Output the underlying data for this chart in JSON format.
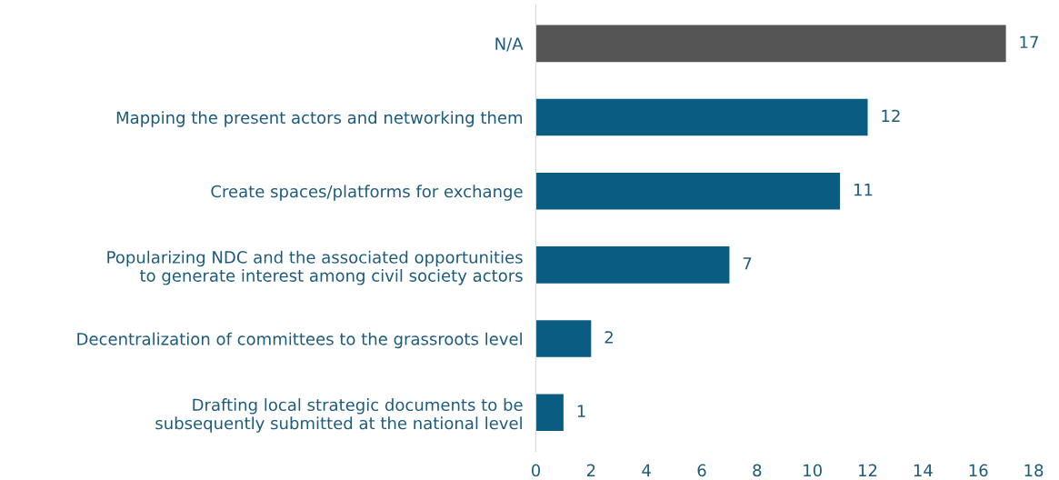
{
  "chart_data": {
    "type": "bar",
    "orientation": "horizontal",
    "categories": [
      "N/A",
      "Mapping the present actors and networking them",
      "Create spaces/platforms for exchange",
      "Popularizing NDC and the associated opportunities\nto generate interest among civil society actors",
      "Decentralization of committees to the grassroots level",
      "Drafting local strategic documents to be\nsubsequently submitted at the national level"
    ],
    "values": [
      17,
      12,
      11,
      7,
      2,
      1
    ],
    "colors": [
      "#555555",
      "#0b5c82",
      "#0b5c82",
      "#0b5c82",
      "#0b5c82",
      "#0b5c82"
    ],
    "xlim": [
      0,
      18
    ],
    "xticks": [
      0,
      2,
      4,
      6,
      8,
      10,
      12,
      14,
      16,
      18
    ],
    "data_labels": true,
    "grid": false,
    "legend": false
  }
}
